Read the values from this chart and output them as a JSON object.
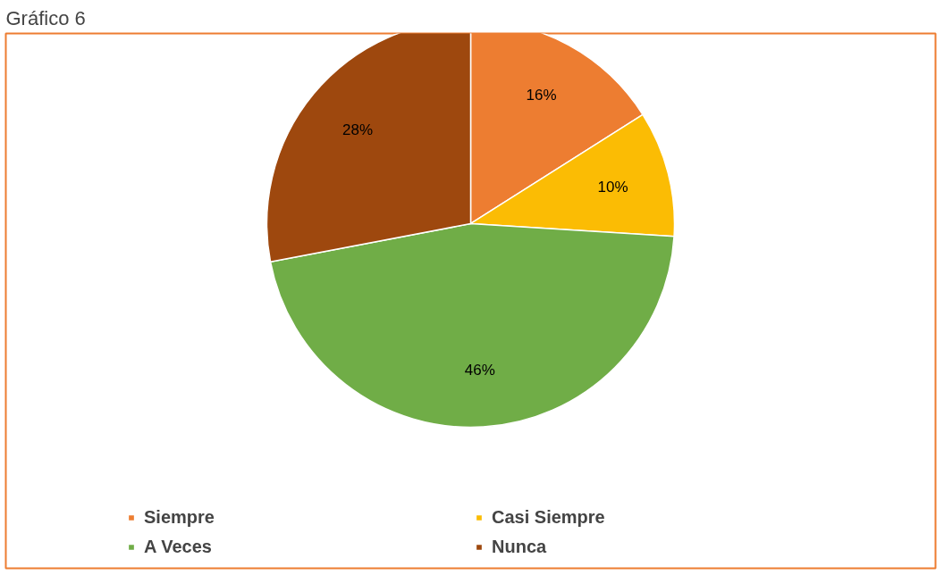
{
  "chart_data": {
    "type": "pie",
    "title": "Gráfico 6",
    "categories": [
      "Siempre",
      "Casi Siempre",
      "A Veces",
      "Nunca"
    ],
    "values": [
      16,
      10,
      46,
      28
    ],
    "colors": [
      "#ed7d31",
      "#fbbc04",
      "#70ad47",
      "#9e480e"
    ],
    "value_labels": [
      "16%",
      "10%",
      "46%",
      "28%"
    ],
    "legend": "bottom"
  }
}
